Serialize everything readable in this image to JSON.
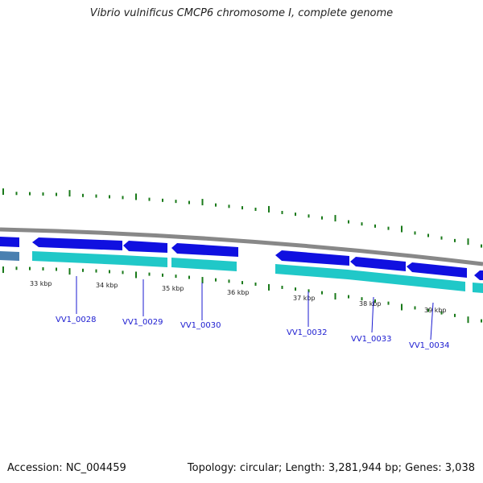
{
  "title": "Vibrio vulnificus CMCP6 chromosome I, complete genome",
  "footer": {
    "accession": "Accession: NC_004459",
    "topology": "Topology: circular; Length: 3,281,944 bp; Genes: 3,038"
  },
  "ruler_labels": [
    "33 kbp",
    "34 kbp",
    "35 kbp",
    "36 kbp",
    "37 kbp",
    "38 kbp",
    "39 kbp"
  ],
  "gene_labels": [
    "VV1_0028",
    "VV1_0029",
    "VV1_0030",
    "VV1_0032",
    "VV1_0033",
    "VV1_0034"
  ],
  "colors": {
    "gene_forward": "#1010e0",
    "cds_track": "#20c8c8",
    "backbone": "#888888",
    "tick": "#1a7a1a",
    "label": "#1a1ad0"
  }
}
